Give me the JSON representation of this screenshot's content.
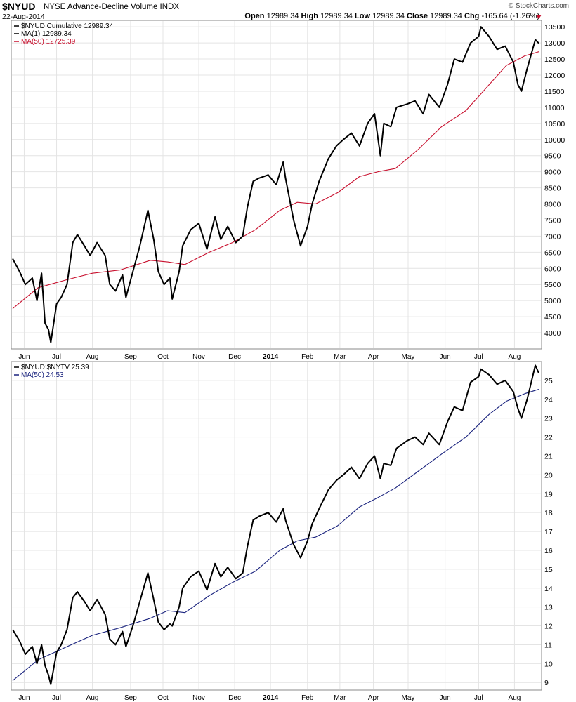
{
  "header": {
    "symbol": "$NYUD",
    "description": "NYSE Advance-Decline Volume INDX",
    "date": "22-Aug-2014",
    "open_label": "Open",
    "open": "12989.34",
    "high_label": "High",
    "high": "12989.34",
    "low_label": "Low",
    "low": "12989.34",
    "close_label": "Close",
    "close": "12989.34",
    "chg_label": "Chg",
    "chg": "-165.64 (-1.26%)",
    "brand": "© StockCharts.com"
  },
  "colors": {
    "price": "#000000",
    "ma50_top": "#c8102e",
    "ma50_bottom": "#1a237e",
    "down": "#c8102e"
  },
  "chart_data": [
    {
      "type": "line",
      "title": "$NYUD Cumulative",
      "x_range": [
        "2013-05-24",
        "2014-08-22"
      ],
      "ylim": [
        3500,
        13700
      ],
      "yticks": [
        4000,
        4500,
        5000,
        5500,
        6000,
        6500,
        7000,
        7500,
        8000,
        8500,
        9000,
        9500,
        10000,
        10500,
        11000,
        11500,
        12000,
        12500,
        13000,
        13500
      ],
      "x_tick_labels": [
        {
          "label": "Jun",
          "date": "2013-06-03"
        },
        {
          "label": "Jul",
          "date": "2013-07-01"
        },
        {
          "label": "Aug",
          "date": "2013-08-01"
        },
        {
          "label": "Sep",
          "date": "2013-09-03"
        },
        {
          "label": "Oct",
          "date": "2013-10-01"
        },
        {
          "label": "Nov",
          "date": "2013-11-01"
        },
        {
          "label": "Dec",
          "date": "2013-12-02"
        },
        {
          "label": "2014",
          "date": "2014-01-02"
        },
        {
          "label": "Feb",
          "date": "2014-02-03"
        },
        {
          "label": "Mar",
          "date": "2014-03-03"
        },
        {
          "label": "Apr",
          "date": "2014-04-01"
        },
        {
          "label": "May",
          "date": "2014-05-01"
        },
        {
          "label": "Jun",
          "date": "2014-06-02"
        },
        {
          "label": "Jul",
          "date": "2014-07-01"
        },
        {
          "label": "Aug",
          "date": "2014-08-01"
        }
      ],
      "grid": true,
      "legend_position": "top-left",
      "legend": [
        {
          "text": "$NYUD Cumulative 12989.34",
          "color": "#000000"
        },
        {
          "text": "MA(1) 12989.34",
          "color": "#000000"
        },
        {
          "text": "MA(50) 12725.39",
          "color": "#c8102e"
        }
      ],
      "series": [
        {
          "name": "MA(1)",
          "color": "#000000",
          "x": [
            "2013-05-24",
            "2013-05-30",
            "2013-06-04",
            "2013-06-10",
            "2013-06-14",
            "2013-06-18",
            "2013-06-21",
            "2013-06-24",
            "2013-06-26",
            "2013-07-01",
            "2013-07-05",
            "2013-07-10",
            "2013-07-15",
            "2013-07-19",
            "2013-07-25",
            "2013-07-30",
            "2013-08-05",
            "2013-08-12",
            "2013-08-16",
            "2013-08-21",
            "2013-08-27",
            "2013-08-30",
            "2013-09-05",
            "2013-09-11",
            "2013-09-18",
            "2013-09-23",
            "2013-09-27",
            "2013-10-02",
            "2013-10-07",
            "2013-10-09",
            "2013-10-15",
            "2013-10-18",
            "2013-10-25",
            "2013-11-01",
            "2013-11-08",
            "2013-11-15",
            "2013-11-20",
            "2013-11-26",
            "2013-12-03",
            "2013-12-09",
            "2013-12-13",
            "2013-12-18",
            "2013-12-23",
            "2013-12-31",
            "2014-01-07",
            "2014-01-13",
            "2014-01-15",
            "2014-01-22",
            "2014-01-28",
            "2014-02-03",
            "2014-02-07",
            "2014-02-13",
            "2014-02-21",
            "2014-02-28",
            "2014-03-06",
            "2014-03-13",
            "2014-03-20",
            "2014-03-27",
            "2014-04-02",
            "2014-04-07",
            "2014-04-10",
            "2014-04-16",
            "2014-04-21",
            "2014-04-30",
            "2014-05-07",
            "2014-05-14",
            "2014-05-19",
            "2014-05-28",
            "2014-06-04",
            "2014-06-10",
            "2014-06-17",
            "2014-06-24",
            "2014-07-01",
            "2014-07-03",
            "2014-07-10",
            "2014-07-17",
            "2014-07-24",
            "2014-07-31",
            "2014-08-04",
            "2014-08-07",
            "2014-08-12",
            "2014-08-19",
            "2014-08-22"
          ],
          "values": [
            6300,
            5900,
            5500,
            5700,
            5000,
            5850,
            4300,
            4100,
            3700,
            4900,
            5100,
            5500,
            6800,
            7050,
            6700,
            6400,
            6800,
            6400,
            5500,
            5300,
            5800,
            5100,
            5900,
            6700,
            7800,
            6900,
            5900,
            5500,
            5700,
            5050,
            5900,
            6700,
            7200,
            7400,
            6600,
            7600,
            6900,
            7300,
            6800,
            7000,
            7900,
            8700,
            8800,
            8900,
            8600,
            9300,
            8800,
            7500,
            6700,
            7300,
            8000,
            8700,
            9400,
            9800,
            10000,
            10200,
            9800,
            10500,
            10800,
            9500,
            10500,
            10400,
            11000,
            11100,
            11200,
            10800,
            11400,
            11000,
            11700,
            12500,
            12400,
            13000,
            13200,
            13500,
            13200,
            12800,
            12900,
            12400,
            11700,
            11500,
            12200,
            13100,
            12989
          ]
        },
        {
          "name": "MA(50)",
          "color": "#c8102e",
          "x": [
            "2013-05-24",
            "2013-06-15",
            "2013-07-10",
            "2013-08-01",
            "2013-08-25",
            "2013-09-20",
            "2013-10-05",
            "2013-10-20",
            "2013-11-10",
            "2013-11-30",
            "2013-12-20",
            "2014-01-10",
            "2014-01-25",
            "2014-02-10",
            "2014-03-01",
            "2014-03-20",
            "2014-04-05",
            "2014-04-20",
            "2014-05-10",
            "2014-05-30",
            "2014-06-20",
            "2014-07-10",
            "2014-07-25",
            "2014-08-10",
            "2014-08-22"
          ],
          "values": [
            4750,
            5400,
            5650,
            5850,
            5950,
            6250,
            6200,
            6120,
            6500,
            6800,
            7200,
            7800,
            8050,
            8000,
            8350,
            8850,
            9000,
            9100,
            9700,
            10400,
            10900,
            11700,
            12300,
            12600,
            12725
          ]
        }
      ]
    },
    {
      "type": "line",
      "title": "$NYUD:$NYTV",
      "x_range": [
        "2013-05-24",
        "2014-08-22"
      ],
      "ylim": [
        8.6,
        26.0
      ],
      "yticks": [
        9,
        10,
        11,
        12,
        13,
        14,
        15,
        16,
        17,
        18,
        19,
        20,
        21,
        22,
        23,
        24,
        25
      ],
      "x_tick_labels": [
        {
          "label": "Jun",
          "date": "2013-06-03"
        },
        {
          "label": "Jul",
          "date": "2013-07-01"
        },
        {
          "label": "Aug",
          "date": "2013-08-01"
        },
        {
          "label": "Sep",
          "date": "2013-09-03"
        },
        {
          "label": "Oct",
          "date": "2013-10-01"
        },
        {
          "label": "Nov",
          "date": "2013-11-01"
        },
        {
          "label": "Dec",
          "date": "2013-12-02"
        },
        {
          "label": "2014",
          "date": "2014-01-02"
        },
        {
          "label": "Feb",
          "date": "2014-02-03"
        },
        {
          "label": "Mar",
          "date": "2014-03-03"
        },
        {
          "label": "Apr",
          "date": "2014-04-01"
        },
        {
          "label": "May",
          "date": "2014-05-01"
        },
        {
          "label": "Jun",
          "date": "2014-06-02"
        },
        {
          "label": "Jul",
          "date": "2014-07-01"
        },
        {
          "label": "Aug",
          "date": "2014-08-01"
        }
      ],
      "grid": true,
      "legend_position": "top-left",
      "legend": [
        {
          "text": "$NYUD:$NYTV 25.39",
          "color": "#000000"
        },
        {
          "text": "MA(50) 24.53",
          "color": "#1a237e"
        }
      ],
      "series": [
        {
          "name": "$NYUD:$NYTV",
          "color": "#000000",
          "x": [
            "2013-05-24",
            "2013-05-30",
            "2013-06-04",
            "2013-06-10",
            "2013-06-14",
            "2013-06-18",
            "2013-06-21",
            "2013-06-24",
            "2013-06-26",
            "2013-07-01",
            "2013-07-05",
            "2013-07-10",
            "2013-07-15",
            "2013-07-19",
            "2013-07-25",
            "2013-07-30",
            "2013-08-05",
            "2013-08-12",
            "2013-08-16",
            "2013-08-21",
            "2013-08-27",
            "2013-08-30",
            "2013-09-05",
            "2013-09-11",
            "2013-09-18",
            "2013-09-23",
            "2013-09-27",
            "2013-10-02",
            "2013-10-07",
            "2013-10-09",
            "2013-10-15",
            "2013-10-18",
            "2013-10-25",
            "2013-11-01",
            "2013-11-08",
            "2013-11-15",
            "2013-11-20",
            "2013-11-26",
            "2013-12-03",
            "2013-12-09",
            "2013-12-13",
            "2013-12-18",
            "2013-12-23",
            "2013-12-31",
            "2014-01-07",
            "2014-01-13",
            "2014-01-15",
            "2014-01-22",
            "2014-01-28",
            "2014-02-03",
            "2014-02-07",
            "2014-02-13",
            "2014-02-21",
            "2014-02-28",
            "2014-03-06",
            "2014-03-13",
            "2014-03-20",
            "2014-03-27",
            "2014-04-02",
            "2014-04-07",
            "2014-04-10",
            "2014-04-16",
            "2014-04-21",
            "2014-04-30",
            "2014-05-07",
            "2014-05-14",
            "2014-05-19",
            "2014-05-28",
            "2014-06-04",
            "2014-06-10",
            "2014-06-17",
            "2014-06-24",
            "2014-07-01",
            "2014-07-03",
            "2014-07-10",
            "2014-07-17",
            "2014-07-24",
            "2014-07-31",
            "2014-08-04",
            "2014-08-07",
            "2014-08-12",
            "2014-08-19",
            "2014-08-22"
          ],
          "values": [
            11.8,
            11.2,
            10.5,
            10.9,
            10.0,
            11.0,
            9.9,
            9.4,
            8.9,
            10.6,
            11.0,
            11.8,
            13.5,
            13.8,
            13.3,
            12.8,
            13.4,
            12.6,
            11.3,
            11.0,
            11.7,
            10.9,
            12.0,
            13.3,
            14.8,
            13.4,
            12.2,
            11.8,
            12.1,
            12.0,
            13.0,
            14.0,
            14.6,
            14.9,
            13.9,
            15.3,
            14.6,
            15.1,
            14.5,
            14.8,
            16.2,
            17.6,
            17.8,
            18.0,
            17.5,
            18.2,
            17.6,
            16.3,
            15.6,
            16.5,
            17.4,
            18.2,
            19.2,
            19.7,
            20.0,
            20.4,
            19.8,
            20.6,
            21.0,
            19.8,
            20.6,
            20.5,
            21.4,
            21.8,
            22.0,
            21.6,
            22.2,
            21.6,
            22.8,
            23.6,
            23.4,
            24.9,
            25.2,
            25.6,
            25.3,
            24.8,
            25.0,
            24.4,
            23.5,
            23.0,
            24.0,
            25.8,
            25.39
          ]
        },
        {
          "name": "MA(50)",
          "color": "#1a237e",
          "x": [
            "2013-05-24",
            "2013-06-15",
            "2013-07-10",
            "2013-08-01",
            "2013-08-25",
            "2013-09-20",
            "2013-10-05",
            "2013-10-20",
            "2013-11-10",
            "2013-11-30",
            "2013-12-20",
            "2014-01-10",
            "2014-01-25",
            "2014-02-10",
            "2014-03-01",
            "2014-03-20",
            "2014-04-05",
            "2014-04-20",
            "2014-05-10",
            "2014-05-30",
            "2014-06-20",
            "2014-07-10",
            "2014-07-25",
            "2014-08-10",
            "2014-08-22"
          ],
          "values": [
            9.1,
            10.2,
            10.9,
            11.5,
            11.9,
            12.4,
            12.8,
            12.7,
            13.6,
            14.3,
            14.9,
            16.0,
            16.5,
            16.7,
            17.3,
            18.3,
            18.8,
            19.3,
            20.2,
            21.1,
            22.0,
            23.2,
            23.9,
            24.3,
            24.53
          ]
        }
      ]
    }
  ]
}
